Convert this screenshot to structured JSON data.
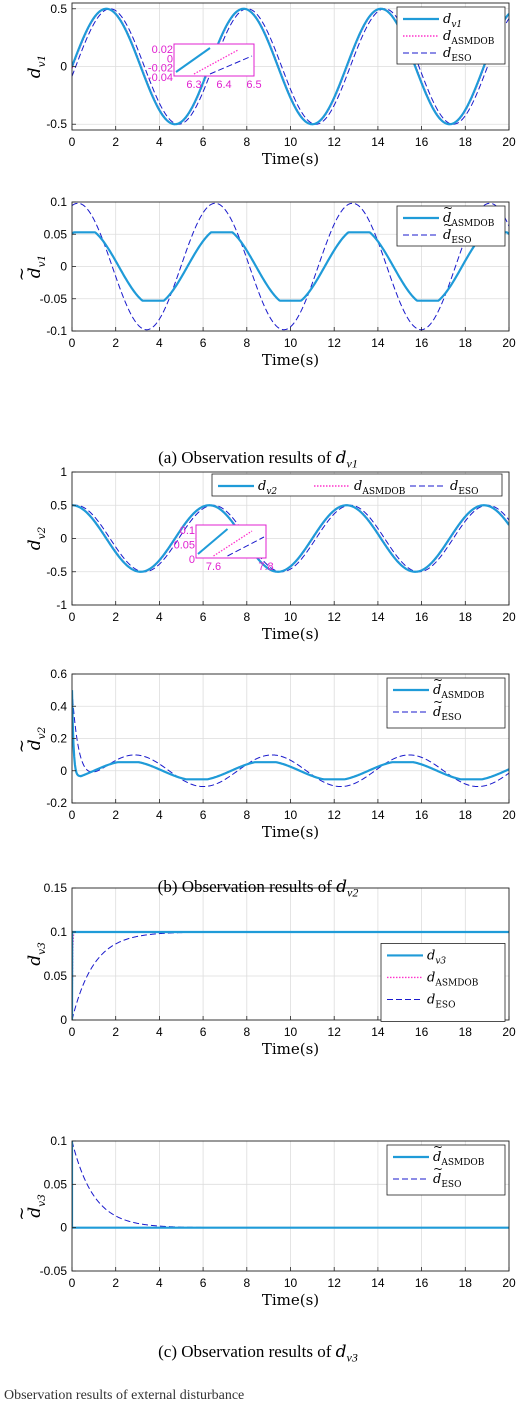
{
  "captions": {
    "a": {
      "prefix": "(a)",
      "text": "Observation results of",
      "sym": "d",
      "sub": "v1"
    },
    "b": {
      "prefix": "(b)",
      "text": "Observation results of",
      "sym": "d",
      "sub": "v2"
    },
    "c": {
      "prefix": "(c)",
      "text": "Observation results of",
      "sym": "d",
      "sub": "v3"
    }
  },
  "footer_text": "Observation results of external disturbance",
  "colors": {
    "true": "#1f9bd8",
    "asmdob": "#ff33cc",
    "eso": "#1a1acc",
    "grid": "#dddddd",
    "zoom": "#e020d0"
  },
  "chart_data": [
    {
      "id": "a1",
      "type": "line",
      "title": "",
      "xlabel": "Time(s)",
      "ylabel": "d_v1",
      "xlim": [
        0,
        20
      ],
      "ylim": [
        -0.55,
        0.55
      ],
      "xticks": [
        0,
        2,
        4,
        6,
        8,
        10,
        12,
        14,
        16,
        18,
        20
      ],
      "yticks": [
        -0.5,
        0,
        0.5
      ],
      "ytick_labels": [
        "-0.5",
        "0",
        "0.5"
      ],
      "grid": true,
      "legend_position": "top-right",
      "series": [
        {
          "name": "d_v1",
          "role": "true",
          "func": "sin",
          "amp": 0.5,
          "omega": 1.0,
          "phase": 0.0
        },
        {
          "name": "d_ASMDOB",
          "role": "asmdob",
          "func": "sin",
          "amp": 0.5,
          "omega": 1.0,
          "phase": -0.03
        },
        {
          "name": "d_ESO",
          "role": "eso",
          "func": "sin",
          "amp": 0.5,
          "omega": 1.0,
          "phase": -0.17
        }
      ],
      "inset": {
        "tick_x": [
          "6.3",
          "6.4",
          "6.5"
        ],
        "tick_y": [
          "0.02",
          "0",
          "-0.02",
          "-0.04"
        ]
      }
    },
    {
      "id": "a2",
      "type": "line",
      "title": "",
      "xlabel": "Time(s)",
      "ylabel": "d~_v1",
      "xlim": [
        0,
        20
      ],
      "ylim": [
        -0.1,
        0.1
      ],
      "xticks": [
        0,
        2,
        4,
        6,
        8,
        10,
        12,
        14,
        16,
        18,
        20
      ],
      "yticks": [
        -0.1,
        -0.05,
        0,
        0.05,
        0.1
      ],
      "ytick_labels": [
        "-0.1",
        "-0.05",
        "0",
        "0.05",
        "0.1"
      ],
      "grid": true,
      "legend_position": "top-right",
      "series": [
        {
          "name": "d~_ASMDOB",
          "role": "true",
          "func": "sinclip",
          "amp": 0.06,
          "omega": 1.0,
          "phase": 1.0,
          "clip": 0.053
        },
        {
          "name": "d~_ESO",
          "role": "eso",
          "func": "sin",
          "amp": 0.098,
          "omega": 1.0,
          "phase": 1.3
        }
      ]
    },
    {
      "id": "b1",
      "type": "line",
      "title": "",
      "xlabel": "Time(s)",
      "ylabel": "d_v2",
      "xlim": [
        0,
        20
      ],
      "ylim": [
        -1,
        1
      ],
      "xticks": [
        0,
        2,
        4,
        6,
        8,
        10,
        12,
        14,
        16,
        18,
        20
      ],
      "yticks": [
        -1,
        -0.5,
        0,
        0.5,
        1
      ],
      "ytick_labels": [
        "-1",
        "-0.5",
        "0",
        "0.5",
        "1"
      ],
      "grid": true,
      "legend_position": "top",
      "series": [
        {
          "name": "d_v2",
          "role": "true",
          "func": "cos",
          "amp": 0.5,
          "omega": 1.0,
          "phase": 0.0
        },
        {
          "name": "d_ASMDOB",
          "role": "asmdob",
          "func": "cos",
          "amp": 0.5,
          "omega": 1.0,
          "phase": -0.03
        },
        {
          "name": "d_ESO",
          "role": "eso",
          "func": "cos",
          "amp": 0.5,
          "omega": 1.0,
          "phase": -0.17
        }
      ],
      "inset": {
        "tick_x": [
          "7.6",
          "7.8"
        ],
        "tick_y": [
          "0.1",
          "0.05",
          "0"
        ]
      }
    },
    {
      "id": "b2",
      "type": "line",
      "title": "",
      "xlabel": "Time(s)",
      "ylabel": "d~_v2",
      "xlim": [
        0,
        20
      ],
      "ylim": [
        -0.2,
        0.6
      ],
      "xticks": [
        0,
        2,
        4,
        6,
        8,
        10,
        12,
        14,
        16,
        18,
        20
      ],
      "yticks": [
        -0.2,
        0,
        0.2,
        0.4,
        0.6
      ],
      "ytick_labels": [
        "-0.2",
        "0",
        "0.2",
        "0.4",
        "0.6"
      ],
      "grid": true,
      "legend_position": "top-right",
      "series": [
        {
          "name": "d~_ASMDOB",
          "role": "true",
          "func": "sinclip",
          "amp": 0.06,
          "omega": 1.0,
          "phase": -1.0,
          "clip": 0.053,
          "spike": 0.5
        },
        {
          "name": "d~_ESO",
          "role": "eso",
          "func": "sin",
          "amp": 0.098,
          "omega": 1.0,
          "phase": -1.3,
          "spike": 0.5
        }
      ]
    },
    {
      "id": "c1",
      "type": "line",
      "title": "",
      "xlabel": "Time(s)",
      "ylabel": "d_v3",
      "xlim": [
        0,
        20
      ],
      "ylim": [
        0,
        0.15
      ],
      "xticks": [
        0,
        2,
        4,
        6,
        8,
        10,
        12,
        14,
        16,
        18,
        20
      ],
      "yticks": [
        0,
        0.05,
        0.1,
        0.15
      ],
      "ytick_labels": [
        "0",
        "0.05",
        "0.1",
        "0.15"
      ],
      "grid": true,
      "legend_position": "right",
      "series": [
        {
          "name": "d_v3",
          "role": "true",
          "func": "step",
          "level": 0.1
        },
        {
          "name": "d_ASMDOB",
          "role": "asmdob",
          "func": "step",
          "level": 0.1,
          "tau": 0.02
        },
        {
          "name": "d_ESO",
          "role": "eso",
          "func": "exprise",
          "level": 0.1,
          "tau": 1.0
        }
      ]
    },
    {
      "id": "c2",
      "type": "line",
      "title": "",
      "xlabel": "Time(s)",
      "ylabel": "d~_v3",
      "xlim": [
        0,
        20
      ],
      "ylim": [
        -0.05,
        0.1
      ],
      "xticks": [
        0,
        2,
        4,
        6,
        8,
        10,
        12,
        14,
        16,
        18,
        20
      ],
      "yticks": [
        -0.05,
        0,
        0.05,
        0.1
      ],
      "ytick_labels": [
        "-0.05",
        "0",
        "0.05",
        "0.1"
      ],
      "grid": true,
      "legend_position": "top-right",
      "series": [
        {
          "name": "d~_ASMDOB",
          "role": "true",
          "func": "impulse",
          "level": 0.1
        },
        {
          "name": "d~_ESO",
          "role": "eso",
          "func": "expdecay",
          "level": 0.1,
          "tau": 1.0
        }
      ]
    }
  ]
}
